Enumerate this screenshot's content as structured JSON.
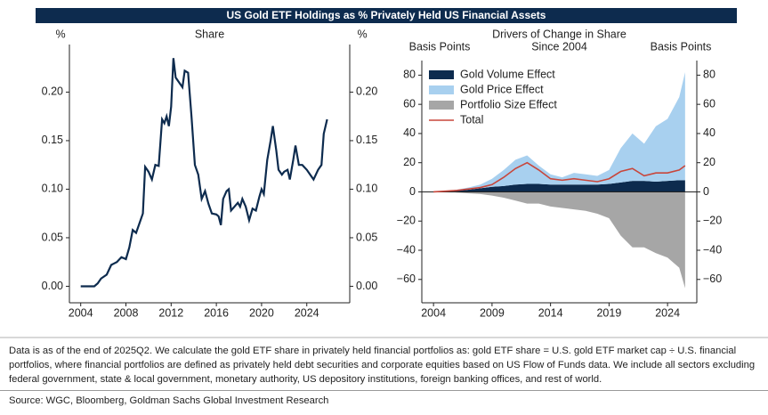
{
  "title": "US Gold ETF Holdings as % Privately Held US Financial Assets",
  "chart_data": [
    {
      "type": "line",
      "subtitle": "Share",
      "ylabel": "%",
      "y2label": "%",
      "color": "#0d2b4e",
      "x": [
        2004,
        2005.2,
        2005.5,
        2005.8,
        2006.3,
        2006.7,
        2007.2,
        2007.6,
        2008.0,
        2008.3,
        2008.6,
        2008.9,
        2009.2,
        2009.5,
        2009.7,
        2010.0,
        2010.3,
        2010.6,
        2010.9,
        2011.2,
        2011.4,
        2011.6,
        2011.8,
        2012.0,
        2012.2,
        2012.4,
        2012.7,
        2013.0,
        2013.2,
        2013.5,
        2013.8,
        2014.1,
        2014.4,
        2014.7,
        2015.0,
        2015.3,
        2015.6,
        2016.0,
        2016.2,
        2016.4,
        2016.6,
        2016.9,
        2017.1,
        2017.3,
        2017.6,
        2017.9,
        2018.1,
        2018.3,
        2018.6,
        2018.9,
        2019.2,
        2019.5,
        2019.8,
        2020.0,
        2020.2,
        2020.5,
        2020.8,
        2021.0,
        2021.3,
        2021.5,
        2021.8,
        2022.0,
        2022.3,
        2022.5,
        2022.8,
        2023.0,
        2023.3,
        2023.6,
        2024.0,
        2024.3,
        2024.6,
        2025.0,
        2025.3,
        2025.5,
        2025.8
      ],
      "values": [
        0.0,
        0.0,
        0.003,
        0.008,
        0.012,
        0.022,
        0.025,
        0.03,
        0.028,
        0.04,
        0.058,
        0.055,
        0.065,
        0.075,
        0.123,
        0.118,
        0.11,
        0.125,
        0.124,
        0.172,
        0.168,
        0.175,
        0.165,
        0.185,
        0.235,
        0.215,
        0.21,
        0.205,
        0.222,
        0.22,
        0.175,
        0.125,
        0.115,
        0.09,
        0.098,
        0.085,
        0.075,
        0.074,
        0.072,
        0.063,
        0.09,
        0.098,
        0.1,
        0.078,
        0.082,
        0.086,
        0.082,
        0.09,
        0.082,
        0.068,
        0.08,
        0.078,
        0.092,
        0.1,
        0.095,
        0.13,
        0.15,
        0.165,
        0.14,
        0.12,
        0.115,
        0.118,
        0.12,
        0.11,
        0.13,
        0.145,
        0.125,
        0.125,
        0.12,
        0.115,
        0.11,
        0.12,
        0.125,
        0.157,
        0.172
      ],
      "xlim": [
        2003,
        2027.8
      ],
      "xticks": [
        2004,
        2008,
        2012,
        2016,
        2020,
        2024
      ],
      "ylim": [
        -0.017,
        0.249
      ],
      "yticks": [
        {
          "value": 0,
          "label": "0.00"
        },
        {
          "value": 0.05,
          "label": "0.05"
        },
        {
          "value": 0.1,
          "label": "0.10"
        },
        {
          "value": 0.15,
          "label": "0.15"
        },
        {
          "value": 0.2,
          "label": "0.20"
        }
      ],
      "y2lim": [
        -0.017,
        0.249
      ],
      "y2ticks": [
        {
          "value": 0,
          "label": "0.00"
        },
        {
          "value": 0.05,
          "label": "0.05"
        },
        {
          "value": 0.1,
          "label": "0.10"
        },
        {
          "value": 0.15,
          "label": "0.15"
        },
        {
          "value": 0.2,
          "label": "0.20"
        }
      ]
    },
    {
      "type": "area",
      "title": "Drivers of Change in Share",
      "subtitle": "Since 2004",
      "ylabel": "Basis Points",
      "y2label": "Basis Points",
      "x": [
        2004,
        2005,
        2006,
        2007,
        2008,
        2009,
        2010,
        2011,
        2012,
        2013,
        2014,
        2015,
        2016,
        2017,
        2018,
        2019,
        2020,
        2021,
        2022,
        2023,
        2024,
        2025,
        2025.5
      ],
      "series": [
        {
          "name": "Gold Volume Effect",
          "color": "#0d2b4e",
          "type": "area",
          "values": [
            0,
            0.3,
            0.8,
            1.5,
            2.5,
            3.5,
            4,
            5,
            5.5,
            5.5,
            5,
            5,
            5,
            5,
            5,
            5.5,
            6.5,
            7.5,
            7.5,
            7,
            7.5,
            8,
            8
          ]
        },
        {
          "name": "Gold Price Effect",
          "color": "#a8d0ef",
          "type": "area",
          "values": [
            0,
            0.2,
            0.7,
            1.5,
            2.5,
            5.5,
            11,
            17,
            19.5,
            12.5,
            7,
            5,
            8,
            7,
            6,
            9.5,
            23.5,
            32.5,
            25.5,
            38,
            42.5,
            57,
            74
          ]
        },
        {
          "name": "Portfolio Size Effect",
          "color": "#a6a6a6",
          "type": "area",
          "values": [
            0,
            0,
            -0.5,
            -1,
            -1.5,
            -2.5,
            -4,
            -6,
            -8,
            -8,
            -10,
            -11,
            -12,
            -13,
            -15,
            -18,
            -30,
            -38,
            -38,
            -42,
            -45,
            -52,
            -66
          ]
        },
        {
          "name": "Total",
          "color": "#c8463b",
          "type": "line",
          "values": [
            0,
            0.5,
            1,
            2,
            3,
            5,
            10,
            16,
            20,
            15,
            9,
            8,
            9,
            8,
            7,
            9,
            14,
            16,
            11,
            13,
            13,
            15,
            18
          ]
        }
      ],
      "legend": "upper left",
      "xlim": [
        2003,
        2026.5
      ],
      "xticks": [
        2004,
        2009,
        2014,
        2019,
        2024
      ],
      "ylim": [
        -76,
        90
      ],
      "yticks": [
        {
          "value": -60,
          "label": "−60"
        },
        {
          "value": -40,
          "label": "−40"
        },
        {
          "value": -20,
          "label": "−20"
        },
        0,
        20,
        40,
        60,
        80
      ],
      "y2lim": [
        -76,
        90
      ],
      "y2ticks": [
        {
          "value": -60,
          "label": "−60"
        },
        {
          "value": -40,
          "label": "−40"
        },
        {
          "value": -20,
          "label": "−20"
        },
        0,
        20,
        40,
        60,
        80
      ]
    }
  ],
  "note": "Data is as of the end of 2025Q2. We calculate the gold ETF share in privately held financial portfolios as: gold ETF share = U.S. gold ETF market cap ÷ U.S. financial portfolios, where financial portfolios are defined as privately held debt securities and corporate equities based on US Flow of Funds data. We include all sectors excluding federal government, state & local government, monetary authority, US depository institutions, foreign banking offices, and rest of world.",
  "source": "Source: WGC, Bloomberg, Goldman Sachs Global Investment Research"
}
